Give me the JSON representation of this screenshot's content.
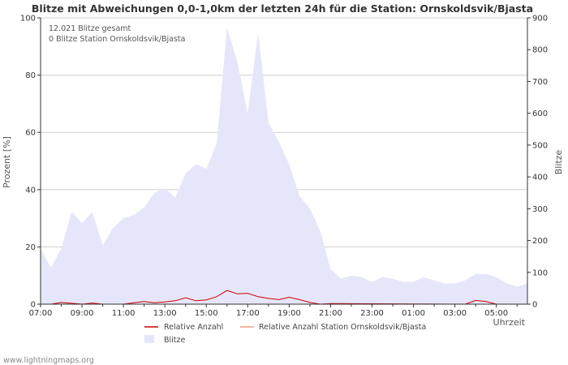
{
  "chart_data": {
    "type": "area",
    "title": "Blitze mit Abweichungen 0,0-1,0km der letzten 24h für die Station: Ornskoldsvik/Bjasta",
    "ylabel_left": "Prozent   [%]",
    "ylabel_right": "Blitze",
    "xlabel": "Uhrzeit",
    "ylim_left": [
      0,
      100
    ],
    "ylim_right": [
      0,
      900
    ],
    "y_ticks_left": [
      "0",
      "20",
      "40",
      "60",
      "80",
      "100"
    ],
    "y_ticks_right": [
      "0",
      "100",
      "200",
      "300",
      "400",
      "500",
      "600",
      "700",
      "800",
      "900"
    ],
    "x_tick_labels": [
      "07:00",
      "09:00",
      "11:00",
      "13:00",
      "15:00",
      "17:00",
      "19:00",
      "21:00",
      "23:00",
      "01:00",
      "03:00",
      "05:00"
    ],
    "x_hours_range": [
      0,
      23.5
    ],
    "annotations": [
      "12.021 Blitze gesamt",
      "0 Blitze Station Ornskoldsvik/Bjasta"
    ],
    "series": [
      {
        "name": "Blitze",
        "axis": "right",
        "color": "#e6e6fa",
        "x": [
          0,
          0.5,
          1,
          1.5,
          2,
          2.5,
          3,
          3.5,
          4,
          4.5,
          5,
          5.5,
          6,
          6.5,
          7,
          7.5,
          8,
          8.5,
          9,
          9.5,
          10,
          10.5,
          11,
          11.5,
          12,
          12.5,
          13,
          13.5,
          14,
          14.5,
          15,
          15.5,
          16,
          16.5,
          17,
          17.5,
          18,
          18.5,
          19,
          19.5,
          20,
          20.5,
          21,
          21.5,
          22,
          22.5,
          23,
          23.5
        ],
        "values": [
          175,
          115,
          175,
          290,
          255,
          290,
          185,
          240,
          270,
          280,
          305,
          350,
          365,
          335,
          410,
          440,
          425,
          505,
          870,
          760,
          600,
          855,
          570,
          510,
          440,
          340,
          300,
          230,
          110,
          80,
          90,
          85,
          70,
          85,
          80,
          70,
          70,
          85,
          75,
          65,
          65,
          75,
          95,
          95,
          85,
          65,
          55,
          65
        ]
      },
      {
        "name": "Relative Anzahl",
        "axis": "left",
        "color": "#cc0000",
        "x": [
          0.5,
          1,
          1.5,
          2,
          2.5,
          3,
          3.5,
          4,
          4.5,
          5,
          5.5,
          6,
          6.5,
          7,
          7.5,
          8,
          8.5,
          9,
          9.5,
          10,
          10.5,
          11,
          11.5,
          12,
          12.5,
          13,
          13.5,
          14,
          20.5,
          21,
          21.5,
          22
        ],
        "values": [
          0,
          0.6,
          0.3,
          0,
          0.4,
          0,
          0,
          0,
          0.5,
          0.9,
          0.5,
          0.8,
          1.2,
          2.2,
          1.2,
          1.5,
          2.6,
          4.8,
          3.6,
          3.8,
          2.6,
          2.0,
          1.6,
          2.4,
          1.6,
          0.6,
          0,
          0.2,
          0,
          1.3,
          0.9,
          0
        ]
      },
      {
        "name": "Relative Anzahl Station Ornskoldsvik/Bjasta",
        "axis": "left",
        "color": "#f0a080",
        "x": [],
        "values": []
      }
    ],
    "legend": [
      "Relative Anzahl",
      "Relative Anzahl Station Ornskoldsvik/Bjasta",
      "Blitze"
    ]
  },
  "footer": "www.lightningmaps.org"
}
